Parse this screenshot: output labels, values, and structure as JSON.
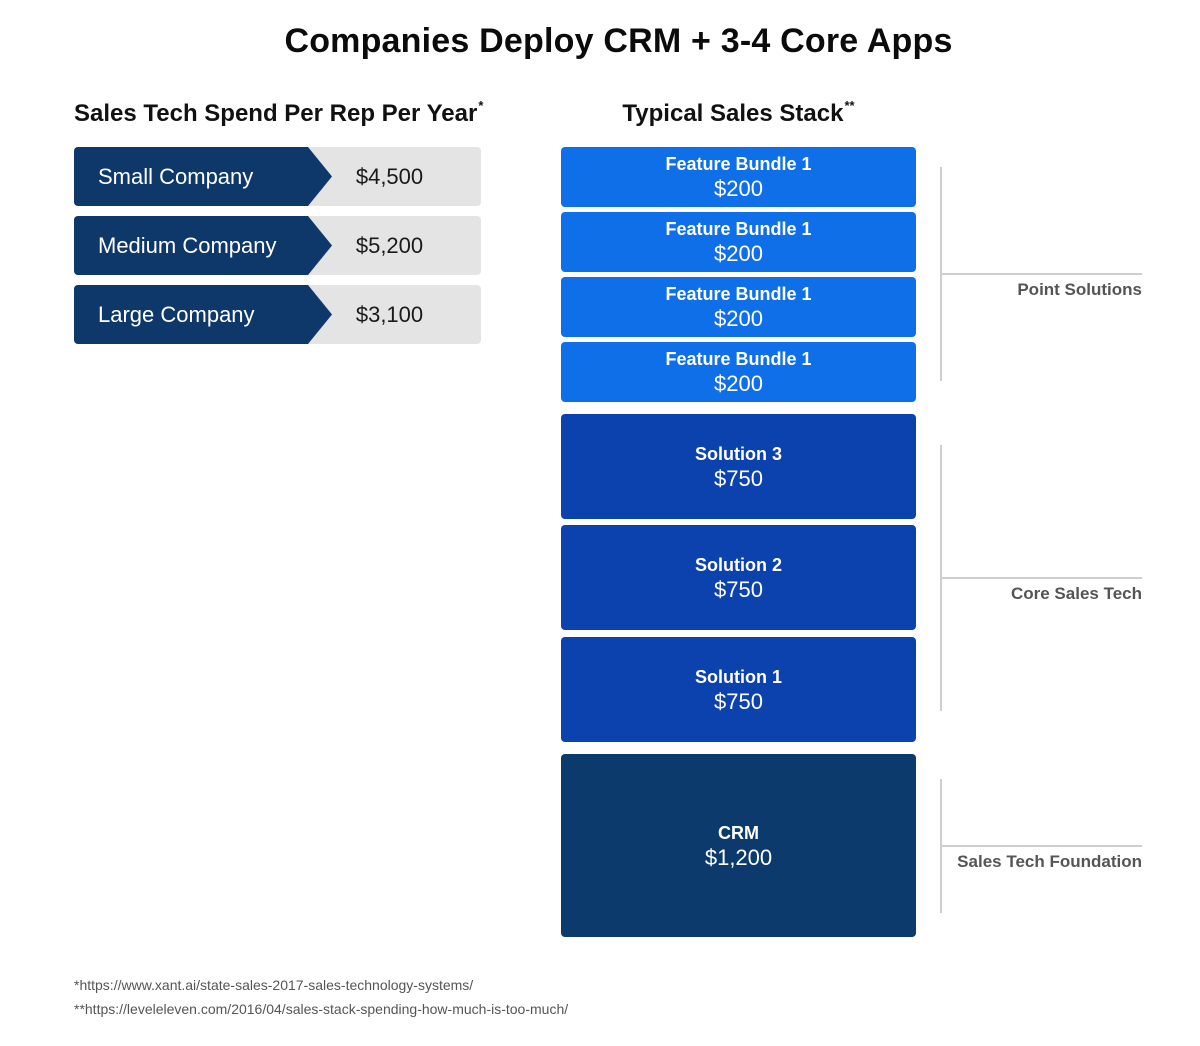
{
  "title": "Companies Deploy CRM + 3-4 Core Apps",
  "left_panel": {
    "title": "Sales Tech Spend Per Rep Per Year",
    "title_mark": "*",
    "rows": [
      {
        "label": "Small Company",
        "value": "$4,500"
      },
      {
        "label": "Medium Company",
        "value": "$5,200"
      },
      {
        "label": "Large Company",
        "value": "$3,100"
      }
    ]
  },
  "right_panel": {
    "title": "Typical Sales Stack",
    "title_mark": "**",
    "blocks": [
      {
        "name": "Feature Bundle 1",
        "price": "$200",
        "tier": "point"
      },
      {
        "name": "Feature Bundle 1",
        "price": "$200",
        "tier": "point"
      },
      {
        "name": "Feature Bundle 1",
        "price": "$200",
        "tier": "point"
      },
      {
        "name": "Feature Bundle 1",
        "price": "$200",
        "tier": "point"
      },
      {
        "name": "Solution 3",
        "price": "$750",
        "tier": "core"
      },
      {
        "name": "Solution 2",
        "price": "$750",
        "tier": "core"
      },
      {
        "name": "Solution 1",
        "price": "$750",
        "tier": "core"
      },
      {
        "name": "CRM",
        "price": "$1,200",
        "tier": "foundation"
      }
    ],
    "groups": [
      {
        "label": "Point Solutions"
      },
      {
        "label": "Core Sales Tech"
      },
      {
        "label": "Sales Tech Foundation"
      }
    ]
  },
  "footnotes": [
    "*https://www.xant.ai/state-sales-2017-sales-technology-systems/",
    "**https://leveleleven.com/2016/04/sales-stack-spending-how-much-is-too-much/"
  ],
  "colors": {
    "label_navy": "#0e376a",
    "value_gray": "#e4e4e4",
    "bundle_blue": "#0f6fe8",
    "solution_blue": "#0c42ad",
    "crm_navy": "#0c3a6d"
  }
}
